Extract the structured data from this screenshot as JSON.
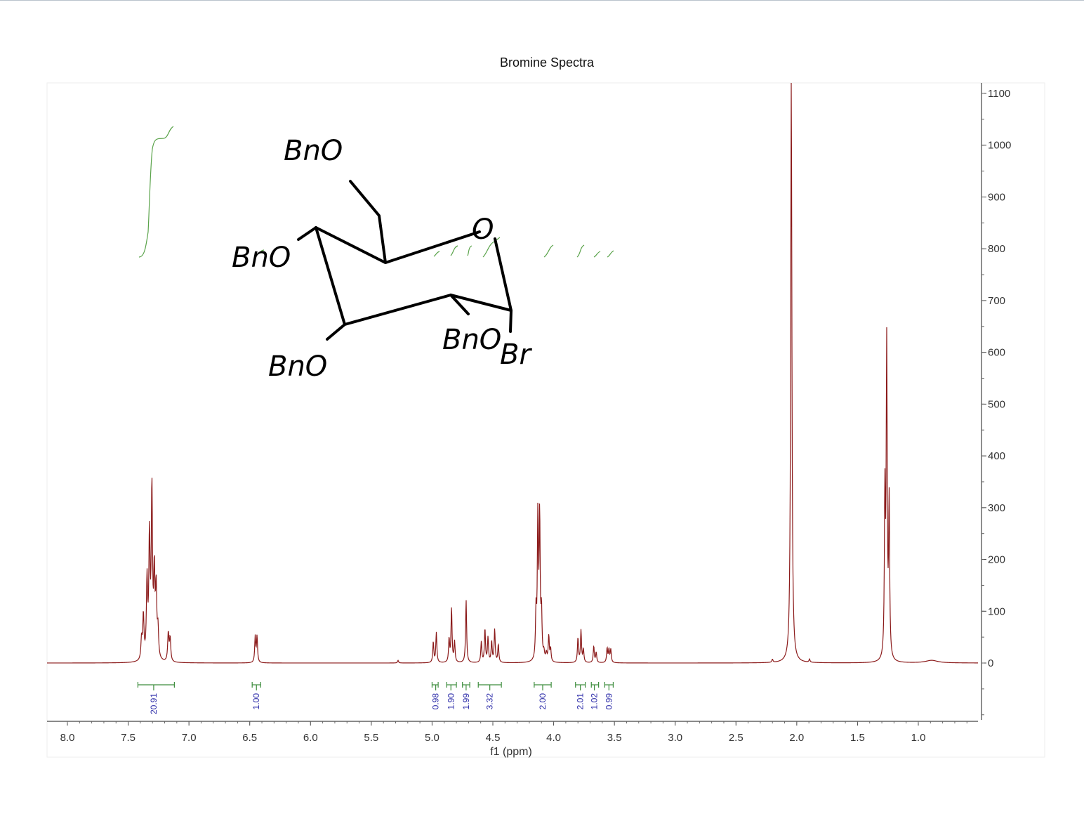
{
  "chart_data": {
    "type": "line",
    "title": "Bromine Spectra",
    "xlabel": "f1 (ppm)",
    "ylabel": "",
    "xlim": [
      8.15,
      0.5
    ],
    "ylim": [
      -100,
      1125
    ],
    "x_reversed": true,
    "x_ticks": [
      "8.0",
      "7.5",
      "7.0",
      "6.5",
      "6.0",
      "5.5",
      "5.0",
      "4.5",
      "4.0",
      "3.5",
      "3.0",
      "2.5",
      "2.0",
      "1.5",
      "1.0"
    ],
    "y_ticks": [
      "0",
      "100",
      "200",
      "300",
      "400",
      "500",
      "600",
      "700",
      "800",
      "900",
      "1000",
      "1100"
    ],
    "series": [
      {
        "color": "#8b1a1a",
        "peaks": [
          {
            "x": 7.39,
            "h": 40,
            "w": 0.006
          },
          {
            "x": 7.375,
            "h": 85,
            "w": 0.006
          },
          {
            "x": 7.345,
            "h": 150,
            "w": 0.006
          },
          {
            "x": 7.325,
            "h": 230,
            "w": 0.006
          },
          {
            "x": 7.305,
            "h": 325,
            "w": 0.006
          },
          {
            "x": 7.285,
            "h": 160,
            "w": 0.006
          },
          {
            "x": 7.27,
            "h": 130,
            "w": 0.006
          },
          {
            "x": 7.255,
            "h": 55,
            "w": 0.006
          },
          {
            "x": 7.17,
            "h": 55,
            "w": 0.006
          },
          {
            "x": 7.155,
            "h": 45,
            "w": 0.006
          },
          {
            "x": 6.455,
            "h": 50,
            "w": 0.005
          },
          {
            "x": 6.44,
            "h": 50,
            "w": 0.005
          },
          {
            "x": 5.28,
            "h": 5,
            "w": 0.005
          },
          {
            "x": 4.99,
            "h": 40,
            "w": 0.005
          },
          {
            "x": 4.965,
            "h": 58,
            "w": 0.005
          },
          {
            "x": 4.86,
            "h": 45,
            "w": 0.005
          },
          {
            "x": 4.84,
            "h": 105,
            "w": 0.005
          },
          {
            "x": 4.815,
            "h": 40,
            "w": 0.005
          },
          {
            "x": 4.72,
            "h": 122,
            "w": 0.005
          },
          {
            "x": 4.595,
            "h": 40,
            "w": 0.005
          },
          {
            "x": 4.565,
            "h": 65,
            "w": 0.005
          },
          {
            "x": 4.54,
            "h": 48,
            "w": 0.005
          },
          {
            "x": 4.51,
            "h": 40,
            "w": 0.005
          },
          {
            "x": 4.485,
            "h": 64,
            "w": 0.005
          },
          {
            "x": 4.455,
            "h": 35,
            "w": 0.005
          },
          {
            "x": 4.145,
            "h": 90,
            "w": 0.005
          },
          {
            "x": 4.13,
            "h": 272,
            "w": 0.005
          },
          {
            "x": 4.115,
            "h": 275,
            "w": 0.005
          },
          {
            "x": 4.1,
            "h": 90,
            "w": 0.005
          },
          {
            "x": 4.08,
            "h": 15,
            "w": 0.006
          },
          {
            "x": 4.06,
            "h": 15,
            "w": 0.006
          },
          {
            "x": 4.04,
            "h": 50,
            "w": 0.005
          },
          {
            "x": 4.025,
            "h": 25,
            "w": 0.005
          },
          {
            "x": 3.8,
            "h": 48,
            "w": 0.005
          },
          {
            "x": 3.775,
            "h": 62,
            "w": 0.005
          },
          {
            "x": 3.755,
            "h": 25,
            "w": 0.005
          },
          {
            "x": 3.67,
            "h": 32,
            "w": 0.005
          },
          {
            "x": 3.65,
            "h": 20,
            "w": 0.005
          },
          {
            "x": 3.56,
            "h": 28,
            "w": 0.005
          },
          {
            "x": 3.545,
            "h": 25,
            "w": 0.005
          },
          {
            "x": 3.53,
            "h": 25,
            "w": 0.005
          },
          {
            "x": 2.2,
            "h": 6,
            "w": 0.005
          },
          {
            "x": 2.045,
            "h": 1125,
            "w": 0.006
          },
          {
            "x": 1.895,
            "h": 6,
            "w": 0.005
          },
          {
            "x": 1.275,
            "h": 310,
            "w": 0.005
          },
          {
            "x": 1.26,
            "h": 600,
            "w": 0.005
          },
          {
            "x": 1.24,
            "h": 300,
            "w": 0.005
          },
          {
            "x": 0.89,
            "h": 5,
            "w": 0.06
          }
        ]
      }
    ],
    "integrals": [
      {
        "from": 7.42,
        "to": 7.12,
        "center": 7.29,
        "label": "20.91"
      },
      {
        "from": 6.48,
        "to": 6.41,
        "center": 6.445,
        "label": "1.00"
      },
      {
        "from": 5.0,
        "to": 4.95,
        "center": 4.97,
        "label": "0.98"
      },
      {
        "from": 4.88,
        "to": 4.8,
        "center": 4.845,
        "label": "1.90"
      },
      {
        "from": 4.75,
        "to": 4.69,
        "center": 4.72,
        "label": "1.99"
      },
      {
        "from": 4.62,
        "to": 4.43,
        "center": 4.525,
        "label": "3.32"
      },
      {
        "from": 4.16,
        "to": 4.02,
        "center": 4.09,
        "label": "2.00"
      },
      {
        "from": 3.82,
        "to": 3.74,
        "center": 3.78,
        "label": "2.01"
      },
      {
        "from": 3.69,
        "to": 3.63,
        "center": 3.665,
        "label": "1.02"
      },
      {
        "from": 3.58,
        "to": 3.51,
        "center": 3.545,
        "label": "0.99"
      }
    ],
    "annotation": {
      "type": "structure-drawing",
      "labels": [
        "BnO",
        "BnO",
        "BnO",
        "BnO",
        "O",
        "Br"
      ]
    }
  }
}
